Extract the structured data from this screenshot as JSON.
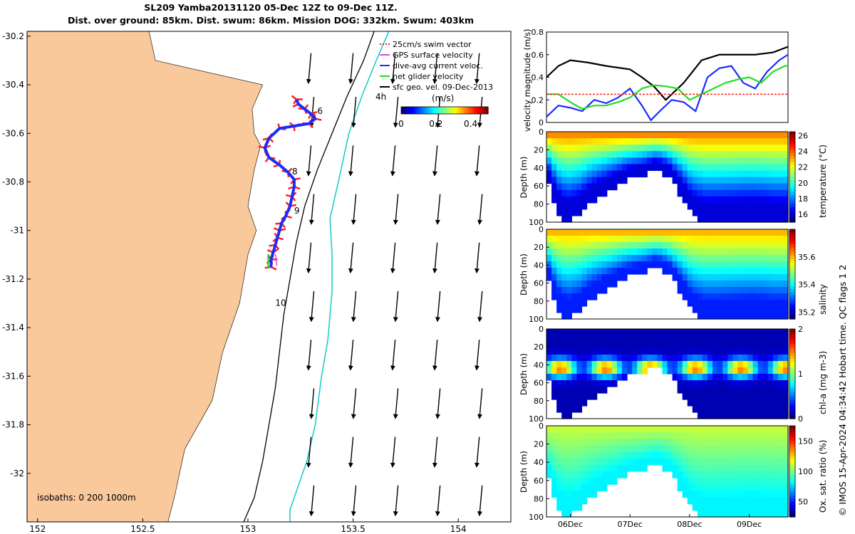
{
  "header": {
    "title_line1": "SL209 Yamba20131120 05-Dec 12Z to 09-Dec 11Z.",
    "title_line2": "Dist. over ground: 85km. Dist. swum: 86km. Mission DOG: 332km. Swum: 403km"
  },
  "credit": "© IMOS 15-Apr-2024 04:34:42 Hobart time. QC flags 1  2",
  "colors": {
    "land": "#f9c89b",
    "track": "#ff2020",
    "dive_avg": "#1a2bff",
    "net": "#22dd22",
    "isobath_1000": "#22cccc",
    "isobath_200": "#000000",
    "gps": "#e040e0"
  },
  "chart_data": [
    {
      "id": "map",
      "type": "scatter",
      "title": "",
      "xlabel": "",
      "ylabel": "",
      "xlim": [
        151.95,
        154.25
      ],
      "ylim": [
        -32.2,
        -30.18
      ],
      "xticks": [
        152,
        152.5,
        153,
        153.5,
        154
      ],
      "yticks": [
        -30.2,
        -30.4,
        -30.6,
        -30.8,
        -31,
        -31.2,
        -31.4,
        -31.6,
        -31.8,
        -32
      ],
      "legend": {
        "items": [
          {
            "label": "25cm/s swim vector",
            "color": "#ff2020",
            "style": "dashed"
          },
          {
            "label": "GPS surface velocity",
            "color": "#e040e0"
          },
          {
            "label": "dive-avg current veloc.",
            "color": "#1a2bff"
          },
          {
            "label": "net glider velocity",
            "color": "#22dd22"
          },
          {
            "label": "sfc geo. vel. 09-Dec-2013",
            "color": "#000000"
          }
        ],
        "time_label": "4h"
      },
      "colorbar": {
        "label": "(m/s)",
        "ticks": [
          0,
          0.2,
          0.4
        ],
        "range": [
          0,
          0.5
        ]
      },
      "isobath_label": "isobaths: 0   200  1000m",
      "day_labels": [
        {
          "text": "6",
          "lon": 153.33,
          "lat": -30.52
        },
        {
          "text": "8",
          "lon": 153.21,
          "lat": -30.77
        },
        {
          "text": "9",
          "lon": 153.22,
          "lat": -30.93
        },
        {
          "text": "10",
          "lon": 153.13,
          "lat": -31.31
        }
      ],
      "track": {
        "lon": [
          153.23,
          153.24,
          153.27,
          153.3,
          153.32,
          153.29,
          153.22,
          153.15,
          153.1,
          153.08,
          153.1,
          153.15,
          153.19,
          153.22,
          153.22,
          153.21,
          153.2,
          153.18,
          153.16,
          153.15,
          153.14,
          153.13,
          153.12,
          153.11,
          153.11
        ],
        "lat": [
          -30.46,
          -30.48,
          -30.5,
          -30.52,
          -30.54,
          -30.56,
          -30.57,
          -30.58,
          -30.62,
          -30.66,
          -30.7,
          -30.73,
          -30.76,
          -30.79,
          -30.82,
          -30.86,
          -30.9,
          -30.94,
          -30.97,
          -31.0,
          -31.03,
          -31.06,
          -31.09,
          -31.12,
          -31.15
        ]
      },
      "isobath_200": {
        "lon": [
          153.6,
          153.55,
          153.47,
          153.4,
          153.33,
          153.27,
          153.23,
          153.2,
          153.17,
          153.15,
          153.13,
          153.1,
          153.07,
          153.03,
          152.98
        ],
        "lat": [
          -30.18,
          -30.3,
          -30.45,
          -30.6,
          -30.75,
          -30.9,
          -31.05,
          -31.2,
          -31.35,
          -31.5,
          -31.65,
          -31.8,
          -31.95,
          -32.1,
          -32.2
        ]
      },
      "isobath_1000": {
        "lon": [
          153.67,
          153.61,
          153.54,
          153.48,
          153.43,
          153.39,
          153.4,
          153.4,
          153.38,
          153.35,
          153.32,
          153.28,
          153.24,
          153.2,
          153.2
        ],
        "lat": [
          -30.18,
          -30.3,
          -30.45,
          -30.6,
          -30.8,
          -30.95,
          -31.1,
          -31.25,
          -31.45,
          -31.6,
          -31.8,
          -31.95,
          -32.05,
          -32.15,
          -32.2
        ]
      },
      "velocity_field": {
        "lon": [
          153.3,
          153.5,
          153.7,
          153.9,
          154.1
        ],
        "lat": [
          -30.27,
          -30.45,
          -30.65,
          -30.85,
          -31.05,
          -31.25,
          -31.45,
          -31.65,
          -31.85,
          -32.05
        ],
        "u": 0.02,
        "v": -0.28
      }
    },
    {
      "id": "velocity_magnitude",
      "type": "line",
      "title": "",
      "xlabel": "",
      "ylabel": "velocity magnitude (m/s)",
      "xlim": [
        5.6,
        9.65
      ],
      "ylim": [
        0,
        0.8
      ],
      "yticks": [
        0,
        0.2,
        0.4,
        0.6,
        0.8
      ],
      "series": [
        {
          "color": "#000000",
          "x": [
            5.6,
            5.8,
            6.0,
            6.3,
            6.6,
            7.0,
            7.2,
            7.4,
            7.6,
            7.9,
            8.2,
            8.5,
            8.8,
            9.1,
            9.4,
            9.65
          ],
          "values": [
            0.4,
            0.5,
            0.55,
            0.53,
            0.5,
            0.47,
            0.4,
            0.32,
            0.2,
            0.35,
            0.55,
            0.6,
            0.6,
            0.6,
            0.62,
            0.67
          ]
        },
        {
          "color": "#1a2bff",
          "x": [
            5.6,
            5.8,
            6.0,
            6.2,
            6.4,
            6.6,
            6.8,
            7.0,
            7.2,
            7.35,
            7.5,
            7.7,
            7.9,
            8.1,
            8.3,
            8.5,
            8.7,
            8.9,
            9.1,
            9.3,
            9.5,
            9.65
          ],
          "values": [
            0.05,
            0.15,
            0.13,
            0.1,
            0.2,
            0.17,
            0.22,
            0.3,
            0.15,
            0.02,
            0.1,
            0.2,
            0.18,
            0.1,
            0.4,
            0.48,
            0.5,
            0.35,
            0.3,
            0.45,
            0.55,
            0.6
          ]
        },
        {
          "color": "#22dd22",
          "x": [
            5.6,
            5.8,
            6.0,
            6.2,
            6.4,
            6.6,
            6.8,
            7.0,
            7.2,
            7.4,
            7.6,
            7.8,
            8.0,
            8.2,
            8.4,
            8.6,
            8.8,
            9.0,
            9.2,
            9.4,
            9.6,
            9.65
          ],
          "values": [
            0.25,
            0.25,
            0.18,
            0.12,
            0.15,
            0.15,
            0.18,
            0.22,
            0.3,
            0.33,
            0.32,
            0.3,
            0.2,
            0.25,
            0.3,
            0.35,
            0.38,
            0.4,
            0.35,
            0.45,
            0.5,
            0.5
          ]
        },
        {
          "color": "#ff2020",
          "dashed": true,
          "x": [
            5.6,
            9.65
          ],
          "values": [
            0.25,
            0.25
          ]
        }
      ]
    },
    {
      "id": "temperature",
      "type": "heatmap",
      "xlabel": "",
      "ylabel": "Depth (m)",
      "colorbar_label": "temperature (°C)",
      "xlim": [
        5.6,
        9.65
      ],
      "ylim": [
        0,
        100
      ],
      "yticks": [
        0,
        20,
        40,
        60,
        80,
        100
      ],
      "colorbar_ticks": [
        16,
        18,
        20,
        22,
        24,
        26
      ],
      "value_range": [
        15,
        26.5
      ],
      "surface_value": 23.5,
      "deep_value": 16,
      "bottom_depth_x": [
        5.6,
        5.75,
        5.9,
        6.1,
        6.3,
        6.6,
        6.9,
        7.15,
        7.4,
        7.6,
        7.8,
        8.0,
        8.2,
        8.4,
        8.6,
        8.8,
        9.0,
        9.2,
        9.4,
        9.65
      ],
      "bottom_depth": [
        55,
        85,
        97,
        90,
        75,
        62,
        50,
        45,
        38,
        45,
        65,
        90,
        98,
        98,
        97,
        96,
        95,
        96,
        98,
        98
      ]
    },
    {
      "id": "salinity",
      "type": "heatmap",
      "xlabel": "",
      "ylabel": "Depth (m)",
      "colorbar_label": "salinity",
      "xlim": [
        5.6,
        9.65
      ],
      "ylim": [
        0,
        100
      ],
      "yticks": [
        0,
        20,
        40,
        60,
        80,
        100
      ],
      "colorbar_ticks": [
        35.2,
        35.4,
        35.6
      ],
      "value_range": [
        35.15,
        35.8
      ],
      "surface_value": 35.6,
      "deep_value": 35.25
    },
    {
      "id": "chlorophyll",
      "type": "heatmap",
      "xlabel": "",
      "ylabel": "Depth (m)",
      "colorbar_label": "chl-a (mg m-3)",
      "xlim": [
        5.6,
        9.65
      ],
      "ylim": [
        0,
        100
      ],
      "yticks": [
        0,
        20,
        40,
        60,
        80,
        100
      ],
      "colorbar_ticks": [
        0,
        1,
        2
      ],
      "value_range": [
        0,
        2
      ],
      "surface_value": 0.1,
      "deep_value": 0.1,
      "max_layer_depth": 40,
      "max_layer_value": 1.5
    },
    {
      "id": "oxygen",
      "type": "heatmap",
      "xlabel": "",
      "ylabel": "Depth (m)",
      "colorbar_label": "Ox. sat. ratio (%)",
      "xlim": [
        5.6,
        9.65
      ],
      "ylim": [
        0,
        100
      ],
      "yticks": [
        0,
        20,
        40,
        60,
        80,
        100
      ],
      "xticks": [
        6,
        7,
        8,
        9
      ],
      "xticklabels": [
        "06Dec",
        "07Dec",
        "08Dec",
        "09Dec"
      ],
      "colorbar_ticks": [
        50,
        100,
        150
      ],
      "value_range": [
        25,
        175
      ],
      "surface_value": 110,
      "deep_value": 80
    }
  ]
}
